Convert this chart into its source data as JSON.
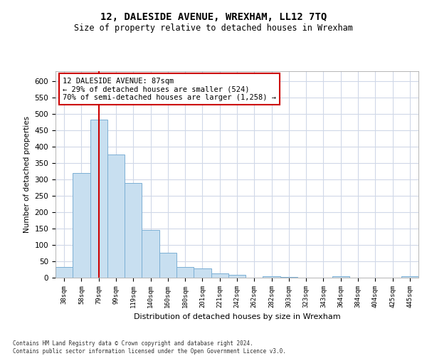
{
  "title": "12, DALESIDE AVENUE, WREXHAM, LL12 7TQ",
  "subtitle": "Size of property relative to detached houses in Wrexham",
  "xlabel": "Distribution of detached houses by size in Wrexham",
  "ylabel": "Number of detached properties",
  "footnote": "Contains HM Land Registry data © Crown copyright and database right 2024.\nContains public sector information licensed under the Open Government Licence v3.0.",
  "bar_labels": [
    "38sqm",
    "58sqm",
    "79sqm",
    "99sqm",
    "119sqm",
    "140sqm",
    "160sqm",
    "180sqm",
    "201sqm",
    "221sqm",
    "242sqm",
    "262sqm",
    "282sqm",
    "303sqm",
    "323sqm",
    "343sqm",
    "364sqm",
    "384sqm",
    "404sqm",
    "425sqm",
    "445sqm"
  ],
  "bar_values": [
    32,
    320,
    483,
    375,
    290,
    145,
    75,
    32,
    28,
    14,
    8,
    0,
    5,
    2,
    0,
    0,
    5,
    0,
    0,
    0,
    5
  ],
  "bar_color": "#c8dff0",
  "bar_edge_color": "#7bafd4",
  "highlight_bar_index": 2,
  "highlight_color": "#cc0000",
  "annotation_text": "12 DALESIDE AVENUE: 87sqm\n← 29% of detached houses are smaller (524)\n70% of semi-detached houses are larger (1,258) →",
  "annotation_box_color": "#ffffff",
  "annotation_box_edge": "#cc0000",
  "ylim": [
    0,
    630
  ],
  "yticks": [
    0,
    50,
    100,
    150,
    200,
    250,
    300,
    350,
    400,
    450,
    500,
    550,
    600
  ],
  "grid_color": "#d0d8e8",
  "background_color": "#ffffff",
  "title_fontsize": 10,
  "subtitle_fontsize": 8.5
}
